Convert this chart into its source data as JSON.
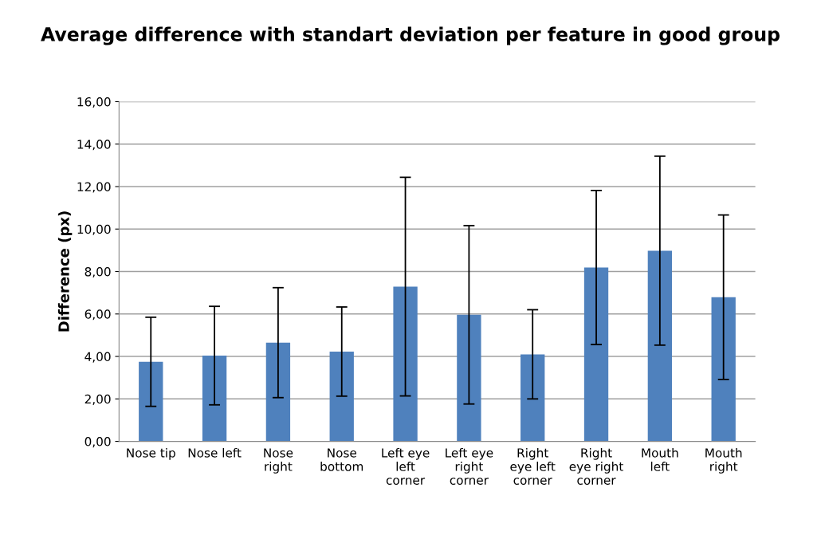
{
  "chart_data": {
    "type": "bar",
    "title": "Average difference with standart deviation per feature in good group",
    "ylabel": "Difference (px)",
    "categories": [
      "Nose tip",
      "Nose left",
      "Nose\nright",
      "Nose\nbottom",
      "Left eye\nleft\ncorner",
      "Left eye\nright\ncorner",
      "Right\neye left\ncorner",
      "Right\neye right\ncorner",
      "Mouth\nleft",
      "Mouth\nright"
    ],
    "values": [
      3.75,
      4.04,
      4.65,
      4.23,
      7.29,
      5.96,
      4.1,
      8.19,
      8.98,
      6.79
    ],
    "errors": [
      2.1,
      2.32,
      2.59,
      2.1,
      5.15,
      4.2,
      2.1,
      3.63,
      4.45,
      3.87
    ],
    "color": "#4f81bd",
    "ylim": [
      0,
      16
    ],
    "yticks": [
      {
        "value": 0,
        "label": "0,00"
      },
      {
        "value": 2,
        "label": "2,00"
      },
      {
        "value": 4,
        "label": "4,00"
      },
      {
        "value": 6,
        "label": "6,00"
      },
      {
        "value": 8,
        "label": "8,00"
      },
      {
        "value": 10,
        "label": "10,00"
      },
      {
        "value": 12,
        "label": "12,00"
      },
      {
        "value": 14,
        "label": "14,00"
      },
      {
        "value": 16,
        "label": "16,00"
      }
    ],
    "grid": "y"
  }
}
